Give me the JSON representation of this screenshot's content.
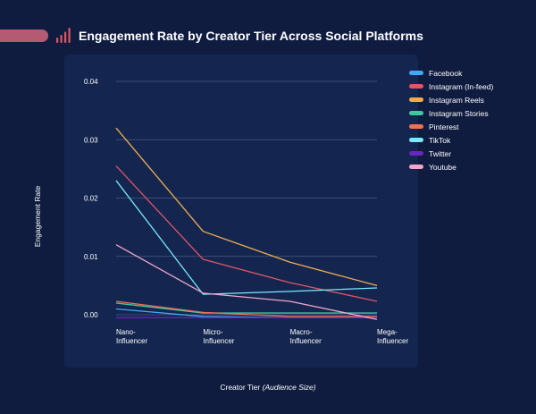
{
  "colors": {
    "background": "#0f1c3f",
    "panel": "#14264f",
    "accent": "#b45a73",
    "grid": "#4a5a80"
  },
  "icons": {
    "title": "bar-chart-icon"
  },
  "chart_data": {
    "type": "line",
    "title": "Engagement Rate by Creator Tier Across Social Platforms",
    "xlabel": "Creator Tier",
    "xlabel_suffix": "(Audience Size)",
    "ylabel": "Engagement Rate",
    "categories": [
      [
        "Nano-",
        "Influencer"
      ],
      [
        "Micro-",
        "Influencer"
      ],
      [
        "Macro-",
        "Influencer"
      ],
      [
        "Mega-",
        "Influencer"
      ]
    ],
    "ylim": [
      0,
      0.04
    ],
    "yticks": [
      "0.00",
      "0.01",
      "0.02",
      "0.03",
      "0.04"
    ],
    "grid": true,
    "legend_position": "right",
    "series": [
      {
        "name": "Facebook",
        "color": "#3fa9f5",
        "values": [
          0.001,
          -0.0003,
          -0.0005,
          -0.0005
        ]
      },
      {
        "name": "Instagram (In-feed)",
        "color": "#e05565",
        "values": [
          0.0255,
          0.0095,
          0.0055,
          0.0023
        ]
      },
      {
        "name": "Instagram Reels",
        "color": "#f0ad50",
        "values": [
          0.032,
          0.0143,
          0.009,
          0.005
        ]
      },
      {
        "name": "Instagram Stories",
        "color": "#3cc9a0",
        "values": [
          0.002,
          0.0003,
          0.0003,
          0.0003
        ]
      },
      {
        "name": "Pinterest",
        "color": "#f07050",
        "values": [
          0.0023,
          0.0004,
          -0.0003,
          -0.0003
        ]
      },
      {
        "name": "TikTok",
        "color": "#7ae8ff",
        "values": [
          0.023,
          0.0035,
          0.004,
          0.0046
        ]
      },
      {
        "name": "Twitter",
        "color": "#6a24c0",
        "values": [
          -0.0005,
          -0.0005,
          -0.0005,
          -0.0005
        ]
      },
      {
        "name": "Youtube",
        "color": "#f2a6c8",
        "values": [
          0.012,
          0.0037,
          0.0023,
          -0.0008
        ]
      }
    ]
  }
}
